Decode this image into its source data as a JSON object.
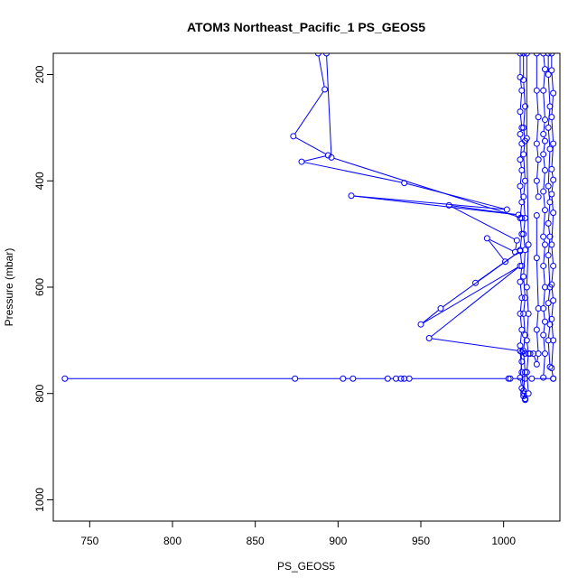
{
  "chart_data": {
    "type": "line",
    "title": "ATOM3 Northeast_Pacific_1 PS_GEOS5",
    "xlabel": "PS_GEOS5",
    "ylabel": "Pressure (mbar)",
    "xlim": [
      728,
      1034
    ],
    "ylim": [
      1040,
      160
    ],
    "y_reversed": true,
    "x_ticks": [
      750,
      800,
      850,
      900,
      950,
      1000
    ],
    "y_ticks": [
      200,
      400,
      600,
      800,
      1000
    ],
    "line_color": "#0000ff",
    "marker": "open-circle",
    "series": [
      {
        "values": [
          {
            "x": 888,
            "y": 160
          },
          {
            "x": 892,
            "y": 228
          },
          {
            "x": 873,
            "y": 316
          },
          {
            "x": 894,
            "y": 352
          },
          {
            "x": 878,
            "y": 364
          },
          {
            "x": 940,
            "y": 404
          },
          {
            "x": 1002,
            "y": 454
          },
          {
            "x": 908,
            "y": 428
          },
          {
            "x": 1009,
            "y": 464
          },
          {
            "x": 967,
            "y": 446
          },
          {
            "x": 1008,
            "y": 512
          },
          {
            "x": 1007,
            "y": 534
          },
          {
            "x": 990,
            "y": 508
          },
          {
            "x": 1001,
            "y": 552
          },
          {
            "x": 983,
            "y": 592
          },
          {
            "x": 1010,
            "y": 532
          },
          {
            "x": 962,
            "y": 640
          },
          {
            "x": 950,
            "y": 670
          },
          {
            "x": 1010,
            "y": 560
          },
          {
            "x": 955,
            "y": 696
          },
          {
            "x": 1010,
            "y": 720
          },
          {
            "x": 1011,
            "y": 760
          },
          {
            "x": 1012,
            "y": 800
          },
          {
            "x": 1013,
            "y": 810
          }
        ]
      },
      {
        "values": [
          {
            "x": 893,
            "y": 160
          },
          {
            "x": 896,
            "y": 356
          },
          {
            "x": 1011,
            "y": 470
          }
        ]
      },
      {
        "values": [
          {
            "x": 735,
            "y": 772
          },
          {
            "x": 874,
            "y": 772
          },
          {
            "x": 903,
            "y": 772
          },
          {
            "x": 909,
            "y": 772
          },
          {
            "x": 930,
            "y": 772
          },
          {
            "x": 935,
            "y": 772
          },
          {
            "x": 938,
            "y": 772
          },
          {
            "x": 940,
            "y": 772
          },
          {
            "x": 943,
            "y": 772
          },
          {
            "x": 1003,
            "y": 772
          },
          {
            "x": 1004,
            "y": 772
          },
          {
            "x": 1013,
            "y": 772
          },
          {
            "x": 1017,
            "y": 772
          },
          {
            "x": 1030,
            "y": 772
          }
        ]
      },
      {
        "values": [
          {
            "x": 1010,
            "y": 160
          },
          {
            "x": 1010,
            "y": 205
          },
          {
            "x": 1011,
            "y": 230
          },
          {
            "x": 1010,
            "y": 270
          },
          {
            "x": 1011,
            "y": 300
          },
          {
            "x": 1010,
            "y": 312
          },
          {
            "x": 1011,
            "y": 330
          },
          {
            "x": 1010,
            "y": 360
          },
          {
            "x": 1011,
            "y": 380
          },
          {
            "x": 1010,
            "y": 410
          },
          {
            "x": 1011,
            "y": 440
          },
          {
            "x": 1010,
            "y": 470
          },
          {
            "x": 1011,
            "y": 500
          },
          {
            "x": 1010,
            "y": 530
          },
          {
            "x": 1011,
            "y": 560
          },
          {
            "x": 1010,
            "y": 590
          },
          {
            "x": 1011,
            "y": 620
          },
          {
            "x": 1010,
            "y": 650
          },
          {
            "x": 1011,
            "y": 680
          },
          {
            "x": 1010,
            "y": 710
          },
          {
            "x": 1011,
            "y": 740
          },
          {
            "x": 1010,
            "y": 770
          },
          {
            "x": 1011,
            "y": 790
          },
          {
            "x": 1012,
            "y": 805
          }
        ]
      },
      {
        "values": [
          {
            "x": 1012,
            "y": 160
          },
          {
            "x": 1012,
            "y": 210
          },
          {
            "x": 1013,
            "y": 260
          },
          {
            "x": 1012,
            "y": 300
          },
          {
            "x": 1013,
            "y": 325
          },
          {
            "x": 1012,
            "y": 350
          },
          {
            "x": 1013,
            "y": 400
          },
          {
            "x": 1012,
            "y": 430
          },
          {
            "x": 1013,
            "y": 470
          },
          {
            "x": 1012,
            "y": 500
          },
          {
            "x": 1013,
            "y": 530
          },
          {
            "x": 1012,
            "y": 580
          },
          {
            "x": 1013,
            "y": 620
          },
          {
            "x": 1012,
            "y": 650
          },
          {
            "x": 1013,
            "y": 690
          },
          {
            "x": 1012,
            "y": 720
          },
          {
            "x": 1013,
            "y": 760
          },
          {
            "x": 1012,
            "y": 795
          },
          {
            "x": 1013,
            "y": 812
          }
        ]
      },
      {
        "values": [
          {
            "x": 1014,
            "y": 160
          },
          {
            "x": 1014,
            "y": 320
          },
          {
            "x": 1015,
            "y": 520
          },
          {
            "x": 1014,
            "y": 600
          },
          {
            "x": 1015,
            "y": 650
          },
          {
            "x": 1014,
            "y": 700
          },
          {
            "x": 1015,
            "y": 725
          },
          {
            "x": 1014,
            "y": 760
          },
          {
            "x": 1015,
            "y": 800
          }
        ]
      },
      {
        "values": [
          {
            "x": 1020,
            "y": 465
          },
          {
            "x": 1020,
            "y": 545
          },
          {
            "x": 1021,
            "y": 640
          },
          {
            "x": 1020,
            "y": 680
          },
          {
            "x": 1021,
            "y": 725
          },
          {
            "x": 1020,
            "y": 745
          },
          {
            "x": 1018,
            "y": 725
          },
          {
            "x": 1016,
            "y": 725
          },
          {
            "x": 1013,
            "y": 725
          },
          {
            "x": 1011,
            "y": 722
          }
        ]
      },
      {
        "values": [
          {
            "x": 1024,
            "y": 160
          },
          {
            "x": 1025,
            "y": 190
          },
          {
            "x": 1024,
            "y": 230
          },
          {
            "x": 1025,
            "y": 285
          },
          {
            "x": 1024,
            "y": 312
          },
          {
            "x": 1025,
            "y": 325
          },
          {
            "x": 1024,
            "y": 350
          },
          {
            "x": 1025,
            "y": 380
          },
          {
            "x": 1024,
            "y": 420
          },
          {
            "x": 1025,
            "y": 455
          },
          {
            "x": 1024,
            "y": 505
          },
          {
            "x": 1025,
            "y": 520
          },
          {
            "x": 1024,
            "y": 560
          },
          {
            "x": 1025,
            "y": 600
          },
          {
            "x": 1024,
            "y": 640
          },
          {
            "x": 1025,
            "y": 665
          },
          {
            "x": 1024,
            "y": 690
          },
          {
            "x": 1025,
            "y": 725
          },
          {
            "x": 1024,
            "y": 770
          }
        ]
      },
      {
        "values": [
          {
            "x": 1027,
            "y": 160
          },
          {
            "x": 1027,
            "y": 200
          },
          {
            "x": 1028,
            "y": 260
          },
          {
            "x": 1027,
            "y": 300
          },
          {
            "x": 1028,
            "y": 340
          },
          {
            "x": 1027,
            "y": 410
          },
          {
            "x": 1028,
            "y": 440
          },
          {
            "x": 1027,
            "y": 480
          },
          {
            "x": 1028,
            "y": 505
          },
          {
            "x": 1027,
            "y": 540
          },
          {
            "x": 1028,
            "y": 600
          },
          {
            "x": 1027,
            "y": 630
          },
          {
            "x": 1028,
            "y": 670
          },
          {
            "x": 1027,
            "y": 700
          },
          {
            "x": 1028,
            "y": 750
          }
        ]
      },
      {
        "values": [
          {
            "x": 1029,
            "y": 160
          },
          {
            "x": 1029,
            "y": 192
          },
          {
            "x": 1030,
            "y": 235
          },
          {
            "x": 1029,
            "y": 280
          },
          {
            "x": 1030,
            "y": 330
          },
          {
            "x": 1029,
            "y": 378
          },
          {
            "x": 1030,
            "y": 398
          },
          {
            "x": 1029,
            "y": 425
          },
          {
            "x": 1030,
            "y": 460
          },
          {
            "x": 1029,
            "y": 520
          },
          {
            "x": 1030,
            "y": 560
          },
          {
            "x": 1029,
            "y": 595
          },
          {
            "x": 1030,
            "y": 625
          },
          {
            "x": 1029,
            "y": 660
          },
          {
            "x": 1030,
            "y": 700
          },
          {
            "x": 1029,
            "y": 752
          },
          {
            "x": 1030,
            "y": 772
          }
        ]
      },
      {
        "values": [
          {
            "x": 1020,
            "y": 160
          },
          {
            "x": 1020,
            "y": 230
          },
          {
            "x": 1021,
            "y": 280
          },
          {
            "x": 1020,
            "y": 330
          },
          {
            "x": 1021,
            "y": 360
          },
          {
            "x": 1020,
            "y": 400
          },
          {
            "x": 1021,
            "y": 430
          }
        ]
      }
    ]
  }
}
